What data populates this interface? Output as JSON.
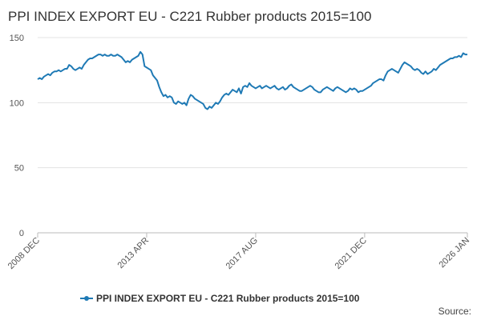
{
  "chart_data": {
    "type": "line",
    "title": "PPI INDEX EXPORT EU - C221 Rubber products 2015=100",
    "source_label": "Source:",
    "categories": [
      "2008 DEC",
      null,
      null,
      null,
      null,
      null,
      null,
      null,
      null,
      null,
      null,
      null,
      null,
      null,
      null,
      null,
      null,
      null,
      null,
      null,
      null,
      null,
      null,
      null,
      null,
      null,
      null,
      null,
      null,
      null,
      null,
      null,
      null,
      null,
      null,
      null,
      null,
      null,
      null,
      null,
      null,
      null,
      null,
      null,
      null,
      null,
      null,
      null,
      null,
      null,
      null,
      null,
      "2013 APR",
      null,
      null,
      null,
      null,
      null,
      null,
      null,
      null,
      null,
      null,
      null,
      null,
      null,
      null,
      null,
      null,
      null,
      null,
      null,
      null,
      null,
      null,
      null,
      null,
      null,
      null,
      null,
      null,
      null,
      null,
      null,
      null,
      null,
      null,
      null,
      null,
      null,
      null,
      null,
      null,
      null,
      null,
      null,
      null,
      null,
      null,
      null,
      null,
      null,
      null,
      null,
      "2017 AUG",
      null,
      null,
      null,
      null,
      null,
      null,
      null,
      null,
      null,
      null,
      null,
      null,
      null,
      null,
      null,
      null,
      null,
      null,
      null,
      null,
      null,
      null,
      null,
      null,
      null,
      null,
      null,
      null,
      null,
      null,
      null,
      null,
      null,
      null,
      null,
      null,
      null,
      null,
      null,
      null,
      null,
      null,
      null,
      null,
      null,
      null,
      null,
      null,
      null,
      null,
      null,
      "2021 DEC",
      null,
      null,
      null,
      null,
      null,
      null,
      null,
      null,
      null,
      null,
      null,
      null,
      null,
      null,
      null,
      null,
      null,
      null,
      null,
      null,
      null,
      null,
      null,
      null,
      null,
      null,
      null,
      null,
      null,
      null,
      null,
      null,
      null,
      null,
      null,
      null,
      null,
      null,
      null,
      null,
      null,
      null,
      null,
      null,
      null,
      null,
      null,
      null,
      "2026 JAN"
    ],
    "series": [
      {
        "name": "PPI INDEX EXPORT EU - C221 Rubber products 2015=100",
        "color": "#1f7ab5",
        "values": [
          118,
          119,
          118,
          120,
          121,
          122,
          121,
          123,
          124,
          124,
          125,
          124,
          125,
          126,
          126,
          129,
          128,
          126,
          125,
          126,
          127,
          126,
          129,
          131,
          133,
          134,
          134,
          135,
          136,
          137,
          137,
          136,
          137,
          136,
          136,
          137,
          136,
          136,
          137,
          136,
          135,
          133,
          131,
          132,
          131,
          133,
          134,
          135,
          136,
          139,
          137,
          128,
          127,
          126,
          125,
          121,
          119,
          117,
          112,
          108,
          105,
          106,
          104,
          105,
          104,
          100,
          99,
          101,
          100,
          99,
          100,
          98,
          103,
          106,
          105,
          103,
          102,
          101,
          100,
          99,
          96,
          95,
          97,
          96,
          98,
          100,
          99,
          101,
          104,
          106,
          107,
          106,
          108,
          110,
          109,
          108,
          111,
          107,
          112,
          113,
          112,
          115,
          113,
          112,
          111,
          112,
          113,
          111,
          112,
          113,
          112,
          111,
          112,
          113,
          111,
          110,
          111,
          112,
          110,
          111,
          113,
          114,
          112,
          111,
          110,
          109,
          109,
          110,
          111,
          112,
          113,
          112,
          110,
          109,
          108,
          108,
          110,
          111,
          112,
          111,
          110,
          109,
          111,
          112,
          111,
          110,
          109,
          108,
          109,
          111,
          110,
          111,
          110,
          108,
          109,
          109,
          110,
          111,
          112,
          113,
          115,
          116,
          117,
          118,
          118,
          117,
          121,
          124,
          125,
          126,
          125,
          124,
          123,
          126,
          129,
          131,
          130,
          129,
          128,
          126,
          125,
          126,
          125,
          123,
          122,
          124,
          122,
          123,
          124,
          126,
          125,
          127,
          129,
          130,
          131,
          132,
          133,
          134,
          134,
          135,
          135,
          136,
          135,
          138,
          137,
          137
        ]
      }
    ],
    "ylim": [
      0,
      150
    ],
    "yticks": [
      0,
      50,
      100,
      150
    ],
    "grid": true,
    "legend": "bottom"
  }
}
